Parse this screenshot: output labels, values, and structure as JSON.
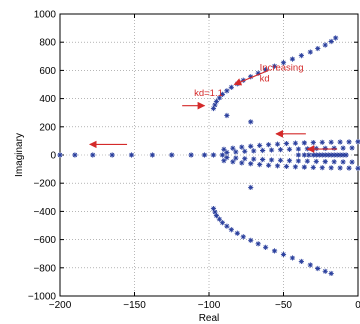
{
  "chart_data": {
    "type": "scatter",
    "title": "",
    "xlabel": "Real",
    "ylabel": "Imaginary",
    "xlim": [
      -200,
      0
    ],
    "ylim": [
      -1000,
      1000
    ],
    "x_ticks": [
      -200,
      -150,
      -100,
      -50,
      0
    ],
    "x_tick_labels": [
      "−200",
      "−150",
      "−100",
      "−50",
      "0"
    ],
    "y_ticks": [
      -1000,
      -800,
      -600,
      -400,
      -200,
      0,
      200,
      400,
      600,
      800,
      1000
    ],
    "y_tick_labels": [
      "−1000",
      "−800",
      "−600",
      "−400",
      "−200",
      "0",
      "200",
      "400",
      "600",
      "800",
      "1000"
    ],
    "grid": true,
    "marker": "asterisk",
    "marker_color": "#2a3f9d",
    "annotation_color": "#d42a2a",
    "series": [
      {
        "points": [
          [
            -200,
            0
          ],
          [
            -190,
            0
          ],
          [
            -178,
            0
          ],
          [
            -165,
            0
          ],
          [
            -152,
            0
          ],
          [
            -138,
            0
          ],
          [
            -125,
            0
          ],
          [
            -112,
            0
          ],
          [
            -103,
            0
          ],
          [
            -97,
            0
          ],
          [
            -91,
            0
          ],
          [
            -97,
            330
          ],
          [
            -96,
            355
          ],
          [
            -95,
            380
          ],
          [
            -93,
            405
          ],
          [
            -91,
            430
          ],
          [
            -88,
            455
          ],
          [
            -85,
            480
          ],
          [
            -81,
            505
          ],
          [
            -77,
            530
          ],
          [
            -72,
            555
          ],
          [
            -67,
            580
          ],
          [
            -62,
            605
          ],
          [
            -56,
            630
          ],
          [
            -50,
            655
          ],
          [
            -44,
            680
          ],
          [
            -38,
            705
          ],
          [
            -32,
            730
          ],
          [
            -27,
            755
          ],
          [
            -22,
            780
          ],
          [
            -18,
            805
          ],
          [
            -15,
            830
          ],
          [
            -97,
            -380
          ],
          [
            -96,
            -405
          ],
          [
            -95,
            -430
          ],
          [
            -93,
            -455
          ],
          [
            -91,
            -480
          ],
          [
            -88,
            -505
          ],
          [
            -85,
            -530
          ],
          [
            -81,
            -555
          ],
          [
            -77,
            -580
          ],
          [
            -72,
            -605
          ],
          [
            -67,
            -630
          ],
          [
            -62,
            -655
          ],
          [
            -56,
            -680
          ],
          [
            -50,
            -705
          ],
          [
            -44,
            -730
          ],
          [
            -38,
            -755
          ],
          [
            -32,
            -780
          ],
          [
            -27,
            -805
          ],
          [
            -22,
            -825
          ],
          [
            -18,
            -840
          ],
          [
            -88,
            280
          ],
          [
            -72,
            235
          ],
          [
            -72,
            -230
          ],
          [
            -90,
            40
          ],
          [
            -84,
            48
          ],
          [
            -78,
            56
          ],
          [
            -72,
            62
          ],
          [
            -66,
            68
          ],
          [
            -60,
            73
          ],
          [
            -54,
            77
          ],
          [
            -48,
            81
          ],
          [
            -42,
            84
          ],
          [
            -36,
            86
          ],
          [
            -30,
            88
          ],
          [
            -24,
            90
          ],
          [
            -18,
            91
          ],
          [
            -12,
            92
          ],
          [
            -6,
            93
          ],
          [
            0,
            94
          ],
          [
            -90,
            -40
          ],
          [
            -84,
            -48
          ],
          [
            -78,
            -56
          ],
          [
            -72,
            -62
          ],
          [
            -66,
            -68
          ],
          [
            -60,
            -73
          ],
          [
            -54,
            -77
          ],
          [
            -48,
            -81
          ],
          [
            -42,
            -84
          ],
          [
            -36,
            -86
          ],
          [
            -30,
            -88
          ],
          [
            -24,
            -90
          ],
          [
            -18,
            -91
          ],
          [
            -12,
            -92
          ],
          [
            -6,
            -93
          ],
          [
            0,
            -94
          ],
          [
            -88,
            18
          ],
          [
            -82,
            22
          ],
          [
            -76,
            26
          ],
          [
            -70,
            29
          ],
          [
            -64,
            32
          ],
          [
            -58,
            35
          ],
          [
            -52,
            38
          ],
          [
            -46,
            40
          ],
          [
            -40,
            42
          ],
          [
            -34,
            44
          ],
          [
            -28,
            46
          ],
          [
            -22,
            47
          ],
          [
            -16,
            48
          ],
          [
            -10,
            49
          ],
          [
            -4,
            50
          ],
          [
            -88,
            -18
          ],
          [
            -82,
            -22
          ],
          [
            -76,
            -26
          ],
          [
            -70,
            -29
          ],
          [
            -64,
            -32
          ],
          [
            -58,
            -35
          ],
          [
            -52,
            -38
          ],
          [
            -46,
            -40
          ],
          [
            -40,
            -42
          ],
          [
            -34,
            -44
          ],
          [
            -28,
            -46
          ],
          [
            -22,
            -47
          ],
          [
            -16,
            -48
          ],
          [
            -10,
            -49
          ],
          [
            -4,
            -50
          ],
          [
            -40,
            0
          ],
          [
            -36,
            0
          ],
          [
            -33,
            0
          ],
          [
            -30,
            0
          ],
          [
            -28,
            0
          ],
          [
            -26,
            0
          ],
          [
            -24,
            0
          ],
          [
            -22,
            0
          ],
          [
            -20,
            0
          ],
          [
            -18,
            0
          ],
          [
            -16,
            0
          ],
          [
            -14,
            0
          ],
          [
            -12,
            0
          ],
          [
            -10,
            0
          ],
          [
            -8,
            0
          ]
        ]
      }
    ],
    "annotations": [
      {
        "id": "increasing-kd",
        "lines": [
          "Increasing",
          "kd"
        ],
        "text_at": [
          -66,
          600
        ],
        "arrow_from": [
          -60,
          600
        ],
        "arrow_to": [
          -83,
          500
        ]
      },
      {
        "id": "kd-1-1",
        "lines": [
          "kd=1.1"
        ],
        "text_at": [
          -110,
          420
        ],
        "arrow_from": [
          -118,
          350
        ],
        "arrow_to": [
          -103,
          350
        ]
      },
      {
        "id": "left-arrow-far",
        "lines": [],
        "arrow_from": [
          -155,
          75
        ],
        "arrow_to": [
          -180,
          75
        ]
      },
      {
        "id": "left-arrow-mid",
        "lines": [],
        "arrow_from": [
          -35,
          150
        ],
        "arrow_to": [
          -55,
          150
        ]
      },
      {
        "id": "left-arrow-near",
        "lines": [],
        "arrow_from": [
          -14,
          42
        ],
        "arrow_to": [
          -34,
          42
        ]
      }
    ]
  }
}
